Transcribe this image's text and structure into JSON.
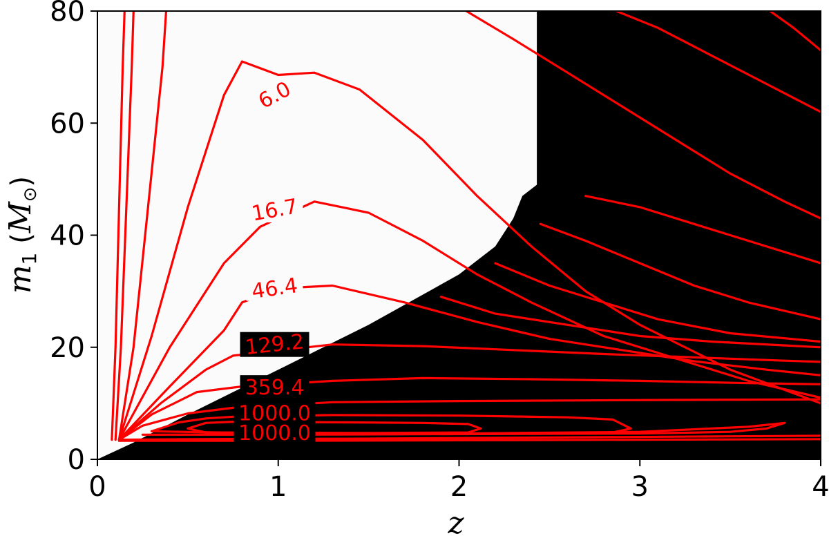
{
  "chart_data": {
    "type": "heatmap",
    "title": "",
    "xlabel": "z",
    "ylabel_main": "m",
    "ylabel_sub": "1",
    "ylabel_unit_open": " (",
    "ylabel_unit_main": "M",
    "ylabel_unit_sub": "⊙",
    "ylabel_unit_close": ")",
    "xlim": [
      0,
      4
    ],
    "ylim": [
      0,
      80
    ],
    "xticks": [
      "0",
      "1",
      "2",
      "3",
      "4"
    ],
    "yticks": [
      "0",
      "20",
      "40",
      "60",
      "80"
    ],
    "background": {
      "description_colors": {
        "allowed": "#fbfbfb",
        "excluded": "#000000"
      },
      "boundary": [
        [
          0.0,
          0
        ],
        [
          0.2,
          3
        ],
        [
          0.5,
          8
        ],
        [
          1.0,
          16
        ],
        [
          1.5,
          24
        ],
        [
          2.0,
          33
        ],
        [
          2.2,
          38
        ],
        [
          2.3,
          43
        ],
        [
          2.35,
          47
        ],
        [
          2.43,
          49
        ],
        [
          2.43,
          80
        ]
      ]
    },
    "contour_color": "#ff0000",
    "contour_labels": [
      {
        "text": "6.0",
        "x": 0.98,
        "y": 65
      },
      {
        "text": "16.7",
        "x": 0.98,
        "y": 44.5
      },
      {
        "text": "46.4",
        "x": 0.98,
        "y": 30.5
      },
      {
        "text": "129.2",
        "x": 0.98,
        "y": 20.5
      },
      {
        "text": "359.4",
        "x": 0.98,
        "y": 12.8
      },
      {
        "text": "1000.0",
        "x": 0.98,
        "y": 8.2
      },
      {
        "text": "1000.0",
        "x": 0.98,
        "y": 4.7
      }
    ],
    "contours": [
      [
        [
          0.08,
          3.5
        ],
        [
          0.1,
          20
        ],
        [
          0.12,
          45
        ],
        [
          0.14,
          70
        ],
        [
          0.15,
          80
        ]
      ],
      [
        [
          0.1,
          3.5
        ],
        [
          0.13,
          20
        ],
        [
          0.16,
          45
        ],
        [
          0.19,
          70
        ],
        [
          0.2,
          80
        ]
      ],
      [
        [
          0.12,
          3.5
        ],
        [
          0.2,
          20
        ],
        [
          0.28,
          45
        ],
        [
          0.36,
          70
        ],
        [
          0.38,
          80
        ]
      ],
      [
        [
          0.12,
          3.5
        ],
        [
          0.3,
          22
        ],
        [
          0.5,
          45
        ],
        [
          0.7,
          65
        ],
        [
          0.8,
          71
        ],
        [
          1.0,
          68.6
        ],
        [
          1.2,
          69
        ],
        [
          1.45,
          66
        ],
        [
          1.8,
          57
        ],
        [
          2.1,
          47
        ],
        [
          2.4,
          38
        ],
        [
          2.7,
          30
        ],
        [
          3.0,
          24
        ],
        [
          3.5,
          16
        ],
        [
          4.0,
          10
        ]
      ],
      [
        [
          0.12,
          3.5
        ],
        [
          0.4,
          20
        ],
        [
          0.7,
          35
        ],
        [
          0.9,
          41.5
        ],
        [
          1.2,
          46
        ],
        [
          1.5,
          44
        ],
        [
          1.8,
          39
        ],
        [
          2.1,
          33
        ],
        [
          2.4,
          28
        ],
        [
          2.8,
          22
        ],
        [
          3.2,
          18
        ],
        [
          3.6,
          14
        ],
        [
          4.0,
          11
        ]
      ],
      [
        [
          0.12,
          3.5
        ],
        [
          0.4,
          13
        ],
        [
          0.7,
          23
        ],
        [
          0.8,
          28
        ],
        [
          1.0,
          30.5
        ],
        [
          1.3,
          31
        ],
        [
          1.7,
          28
        ],
        [
          2.1,
          24.5
        ],
        [
          2.5,
          21.5
        ],
        [
          2.9,
          19.5
        ],
        [
          3.3,
          17.5
        ],
        [
          3.7,
          16
        ],
        [
          4.0,
          15
        ]
      ],
      [
        [
          0.12,
          3.5
        ],
        [
          0.35,
          10
        ],
        [
          0.6,
          16
        ],
        [
          0.75,
          18.5
        ],
        [
          1.3,
          20.5
        ],
        [
          1.8,
          20.2
        ],
        [
          2.3,
          19.5
        ],
        [
          2.8,
          18.8
        ],
        [
          3.3,
          18.2
        ],
        [
          3.8,
          17.6
        ],
        [
          4.0,
          17.4
        ]
      ],
      [
        [
          0.12,
          3.5
        ],
        [
          0.3,
          8
        ],
        [
          0.55,
          12
        ],
        [
          0.8,
          13
        ],
        [
          1.3,
          14
        ],
        [
          1.8,
          14.5
        ],
        [
          2.4,
          14.3
        ],
        [
          3.0,
          14.0
        ],
        [
          3.6,
          13.6
        ],
        [
          4.0,
          13.4
        ]
      ],
      [
        [
          0.12,
          3.5
        ],
        [
          0.25,
          6
        ],
        [
          0.5,
          8.2
        ],
        [
          0.75,
          9.2
        ],
        [
          1.3,
          10.2
        ],
        [
          2.0,
          10.4
        ],
        [
          2.6,
          10.5
        ],
        [
          3.2,
          10.6
        ],
        [
          4.0,
          10.7
        ]
      ],
      [
        [
          0.3,
          5.0
        ],
        [
          0.45,
          6.6
        ],
        [
          0.6,
          7.3
        ],
        [
          0.75,
          7.6
        ],
        [
          1.3,
          7.9
        ],
        [
          2.0,
          7.8
        ],
        [
          2.6,
          7.5
        ],
        [
          2.85,
          7.1
        ],
        [
          2.95,
          5.5
        ],
        [
          2.85,
          4.8
        ],
        [
          2.0,
          4.6
        ],
        [
          1.0,
          4.6
        ],
        [
          0.3,
          5.0
        ]
      ],
      [
        [
          0.5,
          5.5
        ],
        [
          0.6,
          6.5
        ],
        [
          0.75,
          6.7
        ],
        [
          1.4,
          6.6
        ],
        [
          1.8,
          6.5
        ],
        [
          2.05,
          6.3
        ],
        [
          2.12,
          5.5
        ],
        [
          2.05,
          4.8
        ],
        [
          1.5,
          4.7
        ],
        [
          0.6,
          4.8
        ],
        [
          0.5,
          5.5
        ]
      ],
      [
        [
          0.25,
          4.4
        ],
        [
          1.0,
          4.45
        ],
        [
          2.0,
          4.6
        ],
        [
          3.0,
          4.9
        ],
        [
          3.6,
          5.8
        ],
        [
          3.8,
          6.5
        ],
        [
          3.7,
          5.5
        ],
        [
          3.5,
          4.9
        ],
        [
          3.0,
          4.6
        ],
        [
          2.0,
          4.5
        ],
        [
          1.0,
          4.4
        ],
        [
          0.25,
          4.4
        ]
      ],
      [
        [
          0.12,
          3.5
        ],
        [
          0.5,
          3.6
        ],
        [
          1.5,
          3.7
        ],
        [
          2.5,
          3.9
        ],
        [
          3.5,
          4.1
        ],
        [
          4.0,
          4.2
        ]
      ],
      [
        [
          0.12,
          3.3
        ],
        [
          1.0,
          3.3
        ],
        [
          2.0,
          3.4
        ],
        [
          3.0,
          3.5
        ],
        [
          4.0,
          3.6
        ]
      ],
      [
        [
          2.04,
          80
        ],
        [
          2.3,
          75
        ],
        [
          2.6,
          69
        ],
        [
          2.9,
          63
        ],
        [
          3.2,
          57
        ],
        [
          3.5,
          51
        ],
        [
          3.8,
          46
        ],
        [
          4.0,
          43
        ]
      ],
      [
        [
          2.87,
          80
        ],
        [
          3.1,
          77
        ],
        [
          3.4,
          72
        ],
        [
          3.7,
          67
        ],
        [
          4.0,
          62
        ]
      ],
      [
        [
          3.72,
          80
        ],
        [
          3.85,
          77
        ],
        [
          4.0,
          73
        ]
      ],
      [
        [
          2.7,
          47
        ],
        [
          3.0,
          45
        ],
        [
          3.3,
          42
        ],
        [
          3.6,
          39
        ],
        [
          3.9,
          36
        ],
        [
          4.0,
          35
        ]
      ],
      [
        [
          2.45,
          42
        ],
        [
          2.7,
          39
        ],
        [
          3.0,
          35
        ],
        [
          3.3,
          31
        ],
        [
          3.6,
          28
        ],
        [
          4.0,
          25
        ]
      ],
      [
        [
          2.2,
          35
        ],
        [
          2.5,
          31
        ],
        [
          2.8,
          28
        ],
        [
          3.1,
          25
        ],
        [
          3.5,
          22.5
        ],
        [
          4.0,
          21
        ]
      ],
      [
        [
          1.9,
          29
        ],
        [
          2.2,
          26
        ],
        [
          2.6,
          24
        ],
        [
          3.0,
          22
        ],
        [
          3.4,
          21
        ],
        [
          4.0,
          20
        ]
      ]
    ]
  }
}
